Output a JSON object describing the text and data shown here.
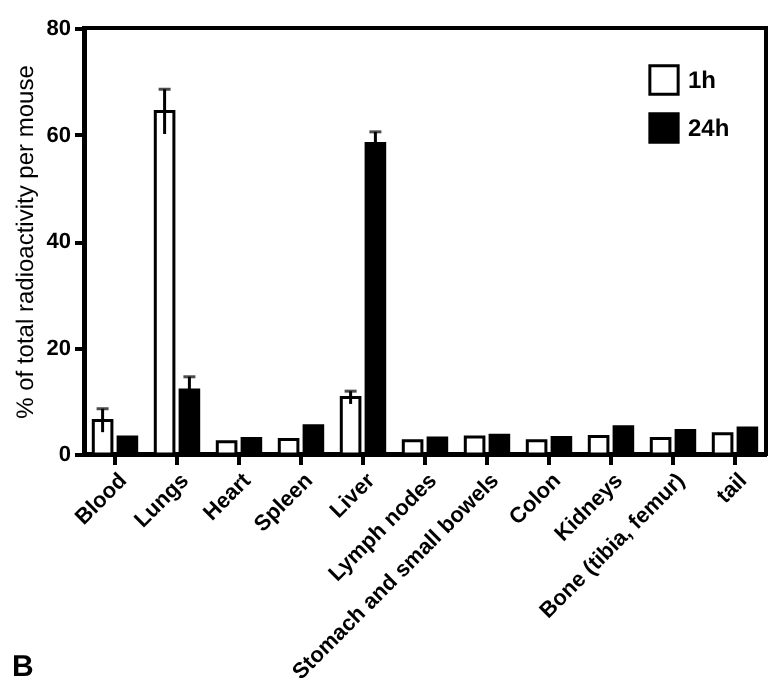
{
  "chart_data": {
    "type": "bar",
    "ylabel": "% of total radioactivity per mouse",
    "categories": [
      "Blood",
      "Lungs",
      "Heart",
      "Spleen",
      "Liver",
      "Lymph nodes",
      "Stomach and small bowels",
      "Colon",
      "Kidneys",
      "Bone (tibia, femur)",
      "tail"
    ],
    "series": [
      {
        "name": "1h",
        "color": "#ffffff",
        "values": [
          6.3,
          64.3,
          2.3,
          2.7,
          10.6,
          2.5,
          3.2,
          2.5,
          3.3,
          2.9,
          3.8
        ],
        "errors": [
          2.2,
          4.2,
          null,
          null,
          1.2,
          null,
          null,
          null,
          null,
          null,
          null
        ]
      },
      {
        "name": "24h",
        "color": "#000000",
        "values": [
          3.2,
          12,
          2.9,
          5.3,
          58.3,
          3,
          3.5,
          3.1,
          5.1,
          4.4,
          4.9
        ],
        "errors": [
          null,
          2.5,
          null,
          null,
          2.2,
          null,
          null,
          null,
          null,
          null,
          null
        ]
      }
    ],
    "ylim": [
      0,
      80
    ],
    "yticks": [
      0,
      20,
      40,
      60,
      80
    ],
    "legend": "top right",
    "grid": false,
    "annotations": [
      "B"
    ]
  }
}
